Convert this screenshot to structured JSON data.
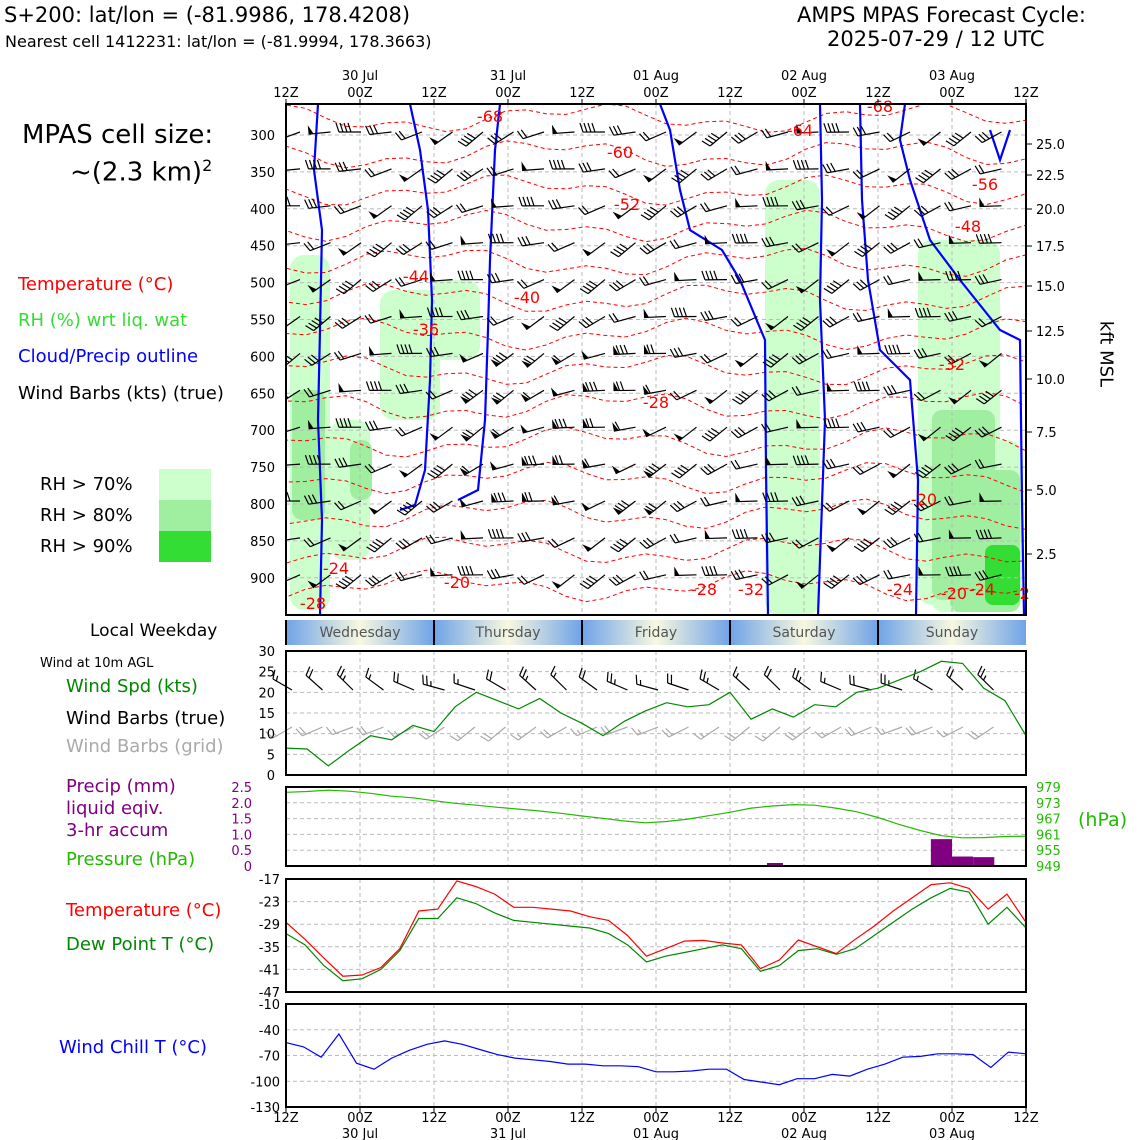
{
  "header": {
    "title_line1": "S+200: lat/lon = (-81.9986, 178.4208)",
    "title_line2": "Nearest cell 1412231: lat/lon = (-81.9994, 178.3663)",
    "cycle_line1": "AMPS MPAS Forecast Cycle:",
    "cycle_line2": "2025-07-29 / 12 UTC"
  },
  "legend": {
    "cell_size_line1": "MPAS cell size:",
    "cell_size_line2": "~(2.3 km)",
    "cell_size_sup": "2",
    "temperature": "Temperature (°C)",
    "rh": "RH (%) wrt liq. wat",
    "cloud": "Cloud/Precip outline",
    "wind": "Wind Barbs (kts) (true)",
    "rh70": "RH > 70%",
    "rh80": "RH > 80%",
    "rh90": "RH > 90%",
    "local_weekday": "Local Weekday",
    "wind10m": "Wind at 10m AGL",
    "wind_spd": "Wind Spd (kts)",
    "wind_barbs_true": "Wind Barbs (true)",
    "wind_barbs_grid": "Wind Barbs (grid)",
    "precip1": "Precip (mm)",
    "precip2": "liquid eqiv.",
    "precip3": "3-hr accum",
    "pressure": "Pressure (hPa)",
    "temp2": "Temperature (°C)",
    "dewpoint": "Dew Point T (°C)",
    "windchill": "Wind Chill T (°C)",
    "hpa_unit": "(hPa)",
    "kft": "kft MSL"
  },
  "colors": {
    "temperature": "#ff0000",
    "rh_label": "#33dd33",
    "cloud": "#0000ff",
    "dewpoint": "#008800",
    "precip": "#800080",
    "pressure": "#22bb00",
    "rh70": "#ccffcc",
    "rh80": "#a0eea0",
    "rh90": "#33dd33"
  },
  "time_axis": {
    "labels_top": [
      "12Z",
      "00Z",
      "12Z",
      "00Z",
      "12Z",
      "00Z",
      "12Z",
      "00Z",
      "12Z",
      "00Z",
      "12Z"
    ],
    "dates": [
      "30 Jul",
      "31 Jul",
      "01 Aug",
      "02 Aug",
      "03 Aug"
    ],
    "weekdays": [
      "Wednesday",
      "Thursday",
      "Friday",
      "Saturday",
      "Sunday"
    ]
  },
  "chart_data": [
    {
      "type": "heatmap",
      "name": "cross-section",
      "y_pressure_ticks": [
        "300",
        "350",
        "400",
        "450",
        "500",
        "550",
        "600",
        "650",
        "700",
        "750",
        "800",
        "850",
        "900"
      ],
      "y_height_ticks": [
        "25.0",
        "22.5",
        "20.0",
        "17.5",
        "15.0",
        "12.5",
        "10.0",
        "7.5",
        "5.0",
        "2.5"
      ],
      "temperature_labels": [
        "-68",
        "-60",
        "-52",
        "-44",
        "-40",
        "-36",
        "-28",
        "-24",
        "-20",
        "-28",
        "-28",
        "-32",
        "-24",
        "-20",
        "-24",
        "-2",
        "-64",
        "-68",
        "-56",
        "-48",
        "-32",
        "-20"
      ],
      "rh_thresholds": [
        70,
        80,
        90
      ]
    },
    {
      "type": "line",
      "name": "wind10m",
      "ylim": [
        0,
        30
      ],
      "yticks": [
        "0",
        "5",
        "10",
        "15",
        "20",
        "25",
        "30"
      ],
      "series": [
        {
          "name": "Wind Spd (kts)",
          "values": [
            6.5,
            6.3,
            2.2,
            6,
            9.5,
            8.5,
            12,
            10.5,
            16.5,
            20,
            18,
            16,
            18.5,
            15,
            12.5,
            9.5,
            13,
            15.5,
            17.5,
            16.5,
            17,
            20,
            13.5,
            16,
            14,
            17,
            16.5,
            20,
            21,
            23,
            25,
            27.5,
            27,
            21,
            18,
            9.5
          ]
        }
      ]
    },
    {
      "type": "bar",
      "name": "precip-pressure",
      "precip_ylim": [
        0,
        2.5
      ],
      "precip_yticks": [
        "0",
        "0.5",
        "1.0",
        "1.5",
        "2.0",
        "2.5"
      ],
      "pressure_yticks": [
        "949",
        "955",
        "961",
        "967",
        "973",
        "979"
      ],
      "precip_values": [
        0,
        0,
        0,
        0,
        0,
        0,
        0,
        0,
        0,
        0,
        0,
        0,
        0,
        0,
        0,
        0,
        0,
        0,
        0,
        0,
        0,
        0,
        0,
        0,
        0,
        0,
        0,
        0,
        0,
        0,
        0,
        0.85,
        0.3,
        0.28,
        0,
        0
      ],
      "series": [
        {
          "name": "Pressure (hPa)",
          "values": [
            977,
            977.3,
            977.8,
            977.4,
            976.6,
            975.5,
            974.9,
            973.8,
            972.8,
            972.1,
            971.3,
            970.6,
            969.9,
            969,
            968,
            967.1,
            966.1,
            965.4,
            965.9,
            966.8,
            968.1,
            969.4,
            971,
            971.8,
            972.3,
            972.1,
            971,
            969.6,
            967.4,
            964.8,
            962.5,
            960.5,
            959.7,
            959.8,
            960.2,
            960.3
          ]
        }
      ]
    },
    {
      "type": "line",
      "name": "temperature",
      "ylim": [
        -47,
        -17
      ],
      "yticks": [
        "-17",
        "-23",
        "-29",
        "-35",
        "-41",
        "-47"
      ],
      "series": [
        {
          "name": "Temperature (°C)",
          "values": [
            -28.5,
            -33,
            -38,
            -42.8,
            -42.5,
            -40.5,
            -35.5,
            -25.5,
            -25,
            -17.5,
            -19,
            -21,
            -24.5,
            -24.5,
            -25,
            -25.5,
            -27,
            -28,
            -32,
            -37.5,
            -35.5,
            -33.5,
            -33.3,
            -34,
            -34.5,
            -40.8,
            -38.5,
            -33.2,
            -35,
            -36.8,
            -33,
            -29.5,
            -25.5,
            -22,
            -18.5,
            -18,
            -19.5,
            -25,
            -21,
            -28.5
          ]
        },
        {
          "name": "Dew Point T (°C)",
          "values": [
            -31.5,
            -34.5,
            -40,
            -44,
            -43.5,
            -41,
            -36,
            -27.5,
            -27.5,
            -22,
            -23.5,
            -26,
            -28,
            -28.5,
            -29,
            -29.5,
            -30,
            -31.5,
            -34.5,
            -39,
            -37.5,
            -36.5,
            -35.5,
            -34.5,
            -35.5,
            -41.5,
            -40,
            -36,
            -35.5,
            -37,
            -35.5,
            -32,
            -28.5,
            -25,
            -22,
            -19.5,
            -20.5,
            -29,
            -24.5,
            -30
          ]
        }
      ]
    },
    {
      "type": "line",
      "name": "windchill",
      "ylim": [
        -130,
        -10
      ],
      "yticks": [
        "-10",
        "-40",
        "-70",
        "-100",
        "-130"
      ],
      "series": [
        {
          "name": "Wind Chill T (°C)",
          "values": [
            -55,
            -60,
            -72,
            -45,
            -79,
            -86,
            -73,
            -64,
            -57,
            -53,
            -57,
            -63,
            -69,
            -73,
            -75,
            -77,
            -80,
            -80,
            -82,
            -82,
            -83,
            -89,
            -89,
            -88,
            -86,
            -86,
            -98,
            -101,
            -104,
            -97,
            -97,
            -92,
            -94,
            -86,
            -80,
            -72,
            -71,
            -68,
            -68,
            -69,
            -84,
            -66,
            -68
          ]
        }
      ]
    }
  ]
}
